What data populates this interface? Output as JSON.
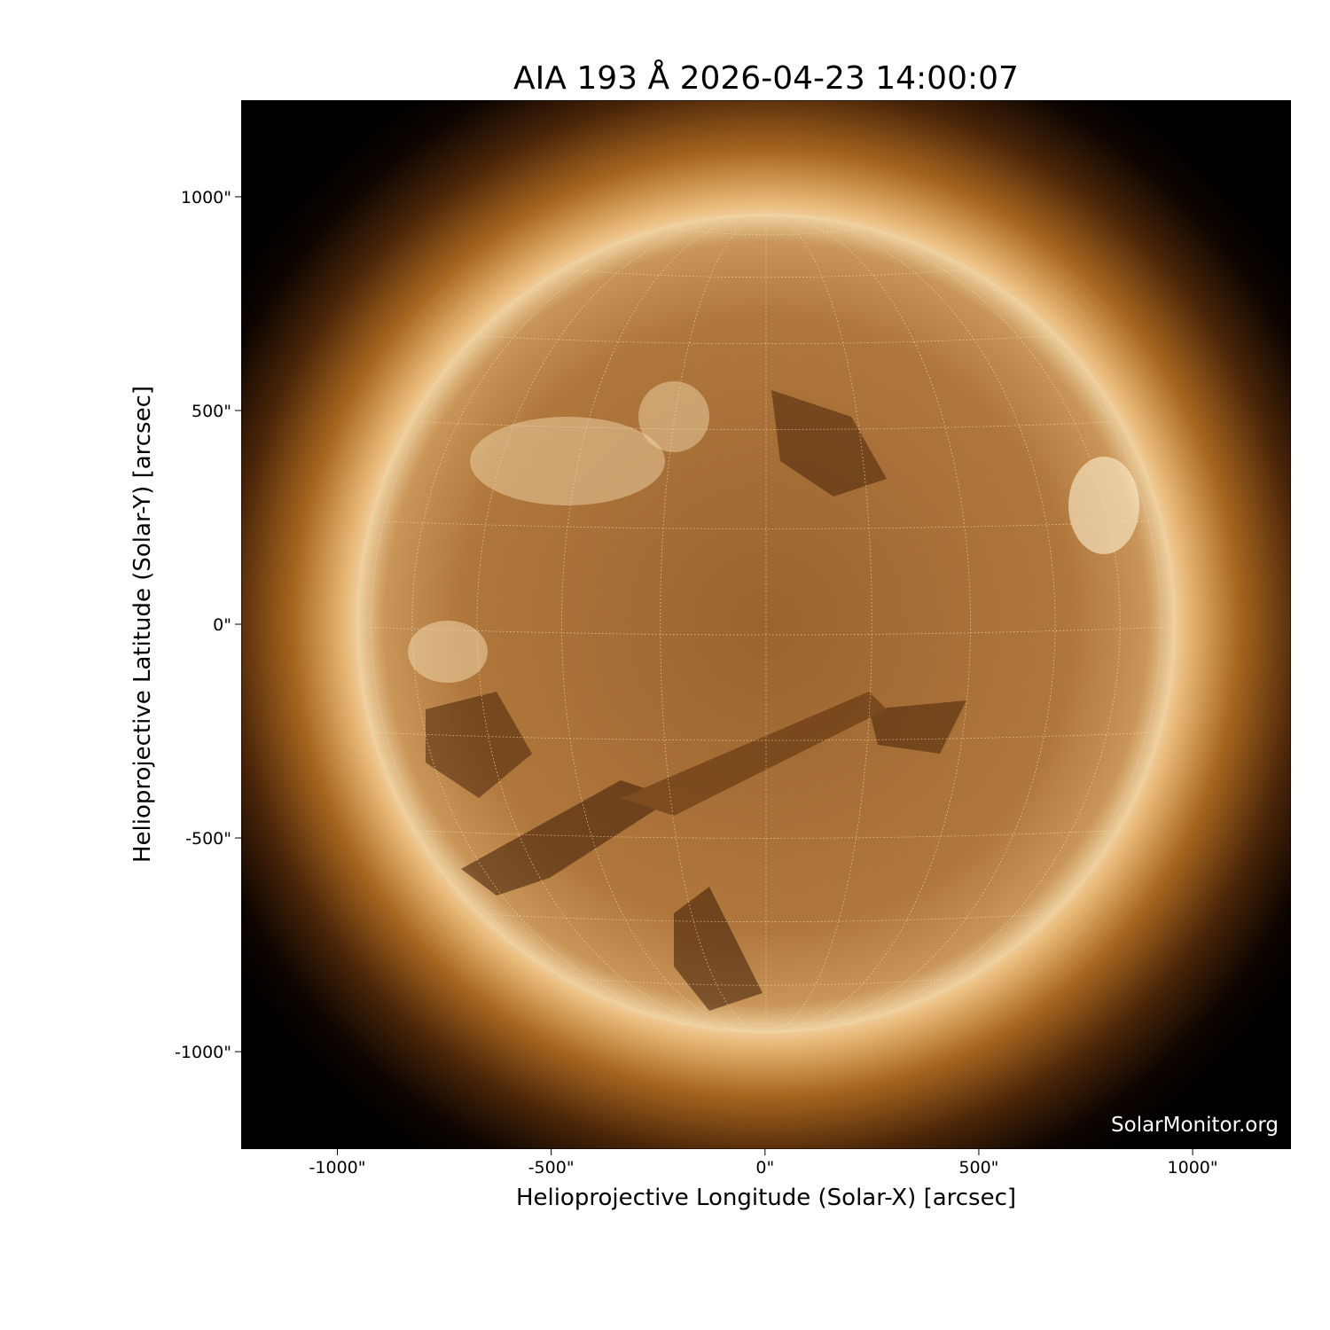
{
  "title": "AIA 193 Å 2026-04-23 14:00:07",
  "instrument": "AIA",
  "wavelength": "193 Å",
  "datetime": "2026-04-23 14:00:07",
  "xlabel": "Helioprojective Longitude (Solar-X) [arcsec]",
  "ylabel": "Helioprojective Latitude (Solar-Y) [arcsec]",
  "x_ticks": [
    -1000,
    -500,
    0,
    500,
    1000
  ],
  "y_ticks": [
    -1000,
    -500,
    0,
    500,
    1000
  ],
  "x_tick_labels": [
    "-1000\"",
    "-500\"",
    "0\"",
    "500\"",
    "1000\""
  ],
  "y_tick_labels": [
    "-1000\"",
    "-500\"",
    "0\"",
    "500\"",
    "1000\""
  ],
  "xlim": [
    -1225,
    1230
  ],
  "ylim": [
    -1228,
    1226
  ],
  "watermark": "SolarMonitor.org",
  "colors": {
    "background": "#000000",
    "disk": "#a8703a",
    "limb": "#f4dcb0",
    "corona": "#8a5220"
  },
  "grid": "heliographic lat/lon dotted"
}
